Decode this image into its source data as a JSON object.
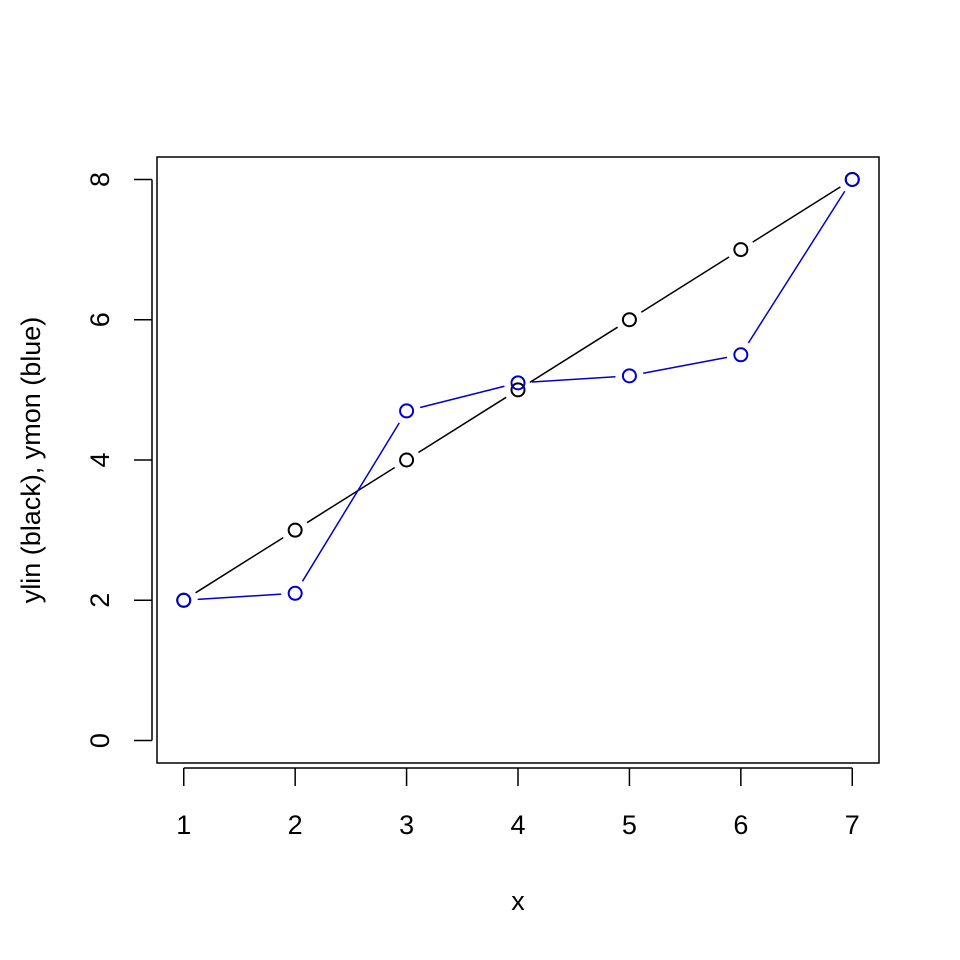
{
  "chart_data": {
    "type": "line",
    "title": "",
    "xlabel": "x",
    "ylabel": "ylin (black), ymon (blue)",
    "x": [
      1,
      2,
      3,
      4,
      5,
      6,
      7
    ],
    "xlim": [
      0.76,
      7.24
    ],
    "ylim": [
      -0.32,
      8.32
    ],
    "xticks": [
      1,
      2,
      3,
      4,
      5,
      6,
      7
    ],
    "yticks": [
      0,
      2,
      4,
      6,
      8
    ],
    "grid": false,
    "series": [
      {
        "values": [
          2,
          3,
          4,
          5,
          6,
          7,
          8
        ],
        "color": "#000000",
        "marker": "open-circle"
      },
      {
        "values": [
          2,
          2.1,
          4.7,
          5.1,
          5.2,
          5.5,
          8
        ],
        "color": "#0000CD",
        "marker": "open-circle"
      }
    ]
  }
}
